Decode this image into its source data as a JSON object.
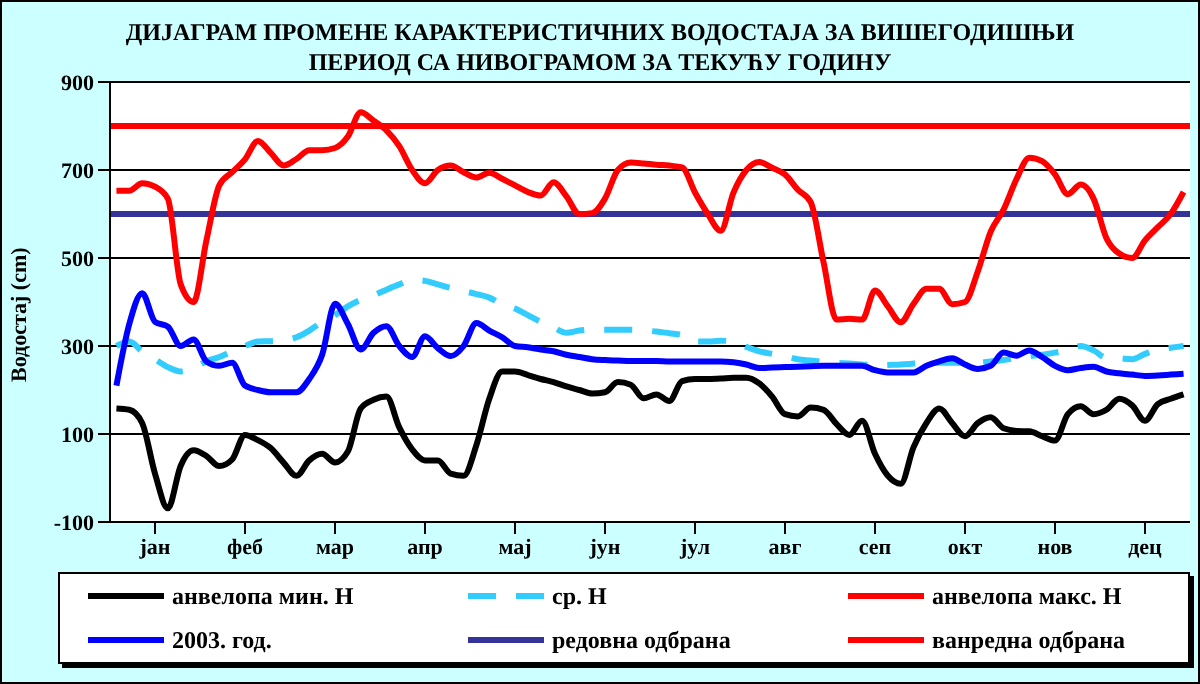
{
  "chart_data": {
    "type": "line",
    "title": "ДИЈАГРАМ ПРОМЕНЕ КАРАКТЕРИСТИЧНИХ ВОДОСТАЈА ЗА ВИШЕГОДИШЊИ ПЕРИОД СА НИВОГРАМОМ ЗА ТЕКУЋУ ГОДИНУ",
    "ylabel": "Водостај (cm)",
    "categories": [
      null,
      null,
      null,
      "јан",
      null,
      null,
      null,
      null,
      null,
      null,
      "феб",
      null,
      null,
      null,
      null,
      null,
      null,
      "мар",
      null,
      null,
      null,
      null,
      null,
      null,
      "апр",
      null,
      null,
      null,
      null,
      null,
      null,
      "мај",
      null,
      null,
      null,
      null,
      null,
      null,
      "јун",
      null,
      null,
      null,
      null,
      null,
      null,
      "јул",
      null,
      null,
      null,
      null,
      null,
      null,
      "авг",
      null,
      null,
      null,
      null,
      null,
      null,
      "сеп",
      null,
      null,
      null,
      null,
      null,
      null,
      "окт",
      null,
      null,
      null,
      null,
      null,
      null,
      "нов",
      null,
      null,
      null,
      null,
      null,
      null,
      "дец",
      null,
      null,
      null
    ],
    "ylim": [
      -100,
      900
    ],
    "yticks": [
      -100,
      100,
      300,
      500,
      700,
      900
    ],
    "grid": "y",
    "legend": "bottom",
    "marker": "none",
    "series": [
      {
        "name": "анвелопа мин. Н",
        "color": "#000000",
        "line_style": "solid",
        "values": [
          158,
          155,
          125,
          10,
          -69,
          28,
          63,
          50,
          27,
          42,
          98,
          86,
          68,
          35,
          5,
          40,
          55,
          35,
          60,
          158,
          178,
          185,
          115,
          65,
          40,
          40,
          10,
          5,
          75,
          180,
          242,
          242,
          234,
          225,
          218,
          208,
          200,
          192,
          195,
          218,
          212,
          181,
          190,
          175,
          220,
          225,
          225,
          226,
          228,
          228,
          215,
          185,
          145,
          140,
          160,
          155,
          123,
          98,
          130,
          55,
          5,
          -13,
          70,
          125,
          158,
          125,
          95,
          125,
          138,
          113,
          107,
          106,
          95,
          85,
          145,
          163,
          145,
          155,
          180,
          165,
          130,
          168,
          180,
          190
        ]
      },
      {
        "name": "ср. Н",
        "color": "#33ccff",
        "line_style": "dashed",
        "values": [
          300,
          310,
          288,
          270,
          252,
          242,
          250,
          265,
          275,
          288,
          300,
          310,
          311,
          313,
          320,
          335,
          355,
          370,
          390,
          405,
          415,
          428,
          440,
          450,
          448,
          440,
          432,
          425,
          418,
          410,
          395,
          385,
          370,
          355,
          342,
          330,
          335,
          337,
          337,
          337,
          337,
          335,
          333,
          329,
          325,
          310,
          310,
          312,
          310,
          298,
          288,
          282,
          277,
          270,
          267,
          264,
          262,
          260,
          258,
          256,
          257,
          258,
          260,
          262,
          262,
          262,
          262,
          262,
          265,
          268,
          273,
          277,
          280,
          285,
          291,
          300,
          290,
          273,
          272,
          270,
          282,
          292,
          296,
          300
        ]
      },
      {
        "name": "анвелопа макс. Н",
        "color": "#ff0000",
        "line_style": "solid",
        "values": [
          653,
          653,
          670,
          662,
          635,
          440,
          400,
          540,
          665,
          695,
          724,
          766,
          739,
          710,
          725,
          745,
          745,
          750,
          776,
          831,
          812,
          790,
          754,
          700,
          670,
          700,
          710,
          695,
          683,
          694,
          680,
          665,
          650,
          642,
          672,
          640,
          600,
          602,
          635,
          700,
          717,
          715,
          712,
          710,
          706,
          649,
          600,
          562,
          649,
          700,
          718,
          705,
          690,
          655,
          627,
          490,
          360,
          362,
          360,
          426,
          390,
          354,
          396,
          430,
          430,
          395,
          400,
          470,
          560,
          610,
          679,
          728,
          720,
          690,
          645,
          667,
          635,
          545,
          510,
          500,
          540,
          570,
          600,
          650
        ]
      },
      {
        "name": "2003. год.",
        "color": "#0000ff",
        "line_style": "solid",
        "values": [
          210,
          350,
          420,
          355,
          344,
          300,
          315,
          265,
          255,
          262,
          210,
          200,
          195,
          195,
          195,
          225,
          280,
          396,
          350,
          292,
          330,
          345,
          300,
          275,
          322,
          295,
          277,
          300,
          352,
          335,
          320,
          300,
          297,
          292,
          288,
          280,
          275,
          270,
          268,
          267,
          266,
          266,
          266,
          265,
          265,
          265,
          265,
          265,
          263,
          258,
          250,
          251,
          252,
          253,
          254,
          255,
          255,
          255,
          255,
          245,
          240,
          240,
          240,
          255,
          265,
          272,
          258,
          248,
          255,
          285,
          278,
          290,
          275,
          255,
          245,
          250,
          253,
          242,
          238,
          235,
          232,
          233,
          235,
          237
        ]
      }
    ],
    "ref_lines": [
      {
        "axis": "y",
        "value": 600,
        "label": "редовна одбрана",
        "color": "#333399"
      },
      {
        "axis": "y",
        "value": 800,
        "label": "ванредна одбрана",
        "color": "#ff0000"
      }
    ]
  }
}
